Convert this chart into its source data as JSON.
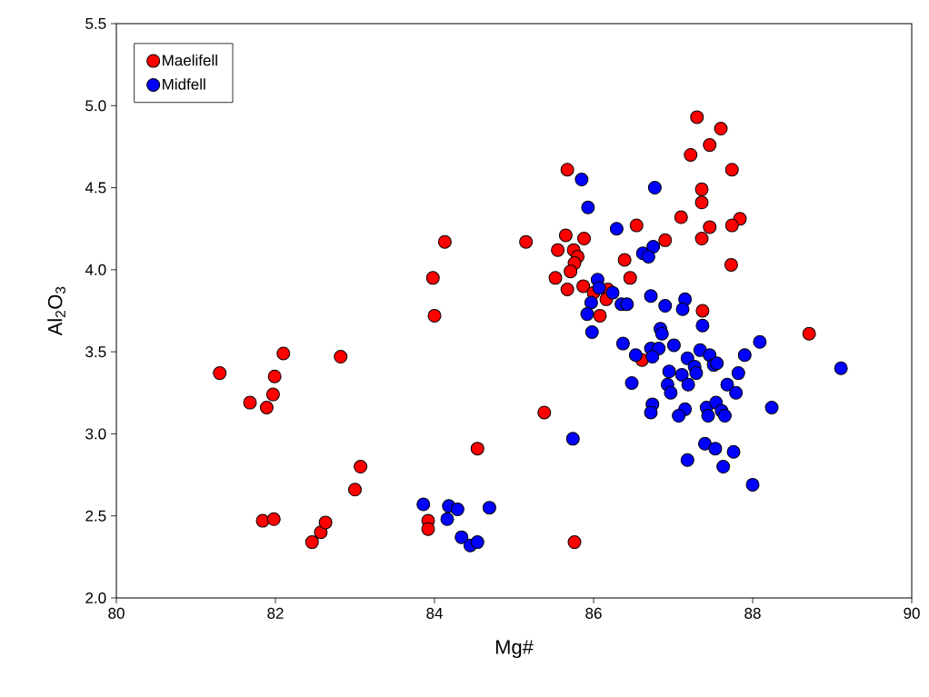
{
  "chart_data": {
    "type": "scatter",
    "xlabel": "Mg#",
    "ylabel": "Al$_{2}$O$_{3}$",
    "xlim": [
      80,
      90
    ],
    "ylim": [
      2.0,
      5.5
    ],
    "xticks": [
      80,
      82,
      84,
      86,
      88,
      90
    ],
    "yticks": [
      {
        "value": 2,
        "label": "2.0"
      },
      {
        "value": 2.5,
        "label": "2.5"
      },
      {
        "value": 3,
        "label": "3.0"
      },
      {
        "value": 3.5,
        "label": "3.5"
      },
      {
        "value": 4,
        "label": "4.0"
      },
      {
        "value": 4.5,
        "label": "4.5"
      },
      {
        "value": 5,
        "label": "5.0"
      },
      {
        "value": 5.5,
        "label": "5.5"
      }
    ],
    "marker": "circle",
    "grid": false,
    "legend": "top left",
    "series": [
      {
        "name": "Maelifell",
        "color": "#ff0000",
        "x": [
          81.3,
          81.68,
          81.89,
          81.97,
          81.99,
          82.1,
          82.82,
          81.84,
          81.98,
          82.46,
          82.57,
          82.63,
          83.0,
          83.07,
          83.98,
          84.0,
          84.13,
          83.92,
          83.92,
          84.54,
          85.15,
          85.38,
          85.76,
          85.67,
          87.3,
          87.6,
          87.46,
          87.22,
          87.74,
          87.36,
          87.36,
          87.1,
          87.84,
          87.74,
          87.46,
          87.36,
          86.54,
          86.9,
          85.65,
          85.88,
          85.55,
          85.75,
          85.8,
          85.76,
          85.71,
          86.39,
          85.52,
          86.46,
          85.87,
          85.67,
          86.0,
          86.18,
          86.16,
          86.08,
          87.37,
          87.73,
          88.71,
          86.61
        ],
        "values": [
          3.37,
          3.19,
          3.16,
          3.24,
          3.35,
          3.49,
          3.47,
          2.47,
          2.48,
          2.34,
          2.4,
          2.46,
          2.66,
          2.8,
          3.95,
          3.72,
          4.17,
          2.47,
          2.42,
          2.91,
          4.17,
          3.13,
          2.34,
          4.61,
          4.93,
          4.86,
          4.76,
          4.7,
          4.61,
          4.49,
          4.41,
          4.32,
          4.31,
          4.27,
          4.26,
          4.19,
          4.27,
          4.18,
          4.21,
          4.19,
          4.12,
          4.12,
          4.08,
          4.04,
          3.99,
          4.06,
          3.95,
          3.95,
          3.9,
          3.88,
          3.86,
          3.88,
          3.82,
          3.72,
          3.75,
          4.03,
          3.61,
          3.45
        ]
      },
      {
        "name": "Midfell",
        "color": "#0000ff",
        "x": [
          83.86,
          84.18,
          84.29,
          84.69,
          84.16,
          84.34,
          84.45,
          84.54,
          85.74,
          85.98,
          86.37,
          85.85,
          85.93,
          86.77,
          86.29,
          86.75,
          86.62,
          86.69,
          86.05,
          86.07,
          86.24,
          85.97,
          85.92,
          86.35,
          86.42,
          86.72,
          86.9,
          87.15,
          87.12,
          87.37,
          86.84,
          86.86,
          87.01,
          86.72,
          86.82,
          86.53,
          86.74,
          87.34,
          87.46,
          87.51,
          87.55,
          87.18,
          87.27,
          87.29,
          86.95,
          87.11,
          87.19,
          86.93,
          86.97,
          88.09,
          87.9,
          87.82,
          87.68,
          87.79,
          86.48,
          86.74,
          86.72,
          87.15,
          87.07,
          87.42,
          87.44,
          87.54,
          87.61,
          87.65,
          88.24,
          89.11,
          87.4,
          87.53,
          87.18,
          87.76,
          87.63,
          88.0
        ],
        "values": [
          2.57,
          2.56,
          2.54,
          2.55,
          2.48,
          2.37,
          2.32,
          2.34,
          2.97,
          3.62,
          3.55,
          4.55,
          4.38,
          4.5,
          4.25,
          4.14,
          4.1,
          4.08,
          3.94,
          3.89,
          3.86,
          3.8,
          3.73,
          3.79,
          3.79,
          3.84,
          3.78,
          3.82,
          3.76,
          3.66,
          3.64,
          3.61,
          3.54,
          3.52,
          3.52,
          3.48,
          3.47,
          3.51,
          3.48,
          3.42,
          3.43,
          3.46,
          3.41,
          3.37,
          3.38,
          3.36,
          3.3,
          3.3,
          3.25,
          3.56,
          3.48,
          3.37,
          3.3,
          3.25,
          3.31,
          3.18,
          3.13,
          3.15,
          3.11,
          3.16,
          3.11,
          3.19,
          3.14,
          3.11,
          3.16,
          3.4,
          2.94,
          2.91,
          2.84,
          2.89,
          2.8,
          2.69
        ]
      }
    ]
  }
}
